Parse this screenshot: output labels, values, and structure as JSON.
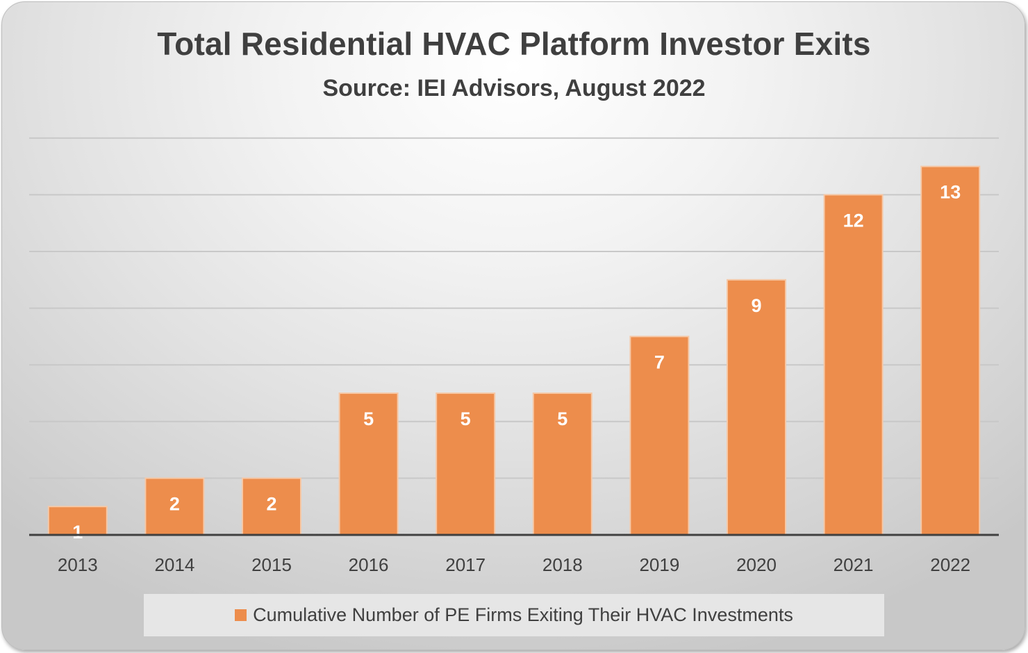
{
  "chart_data": {
    "type": "bar",
    "title": "Total Residential HVAC Platform Investor Exits",
    "subtitle": "Source: IEI Advisors, August 2022",
    "categories": [
      "2013",
      "2014",
      "2015",
      "2016",
      "2017",
      "2018",
      "2019",
      "2020",
      "2021",
      "2022"
    ],
    "series": [
      {
        "name": "Cumulative Number of PE Firms Exiting Their HVAC Investments",
        "values": [
          1,
          2,
          2,
          5,
          5,
          5,
          7,
          9,
          12,
          13
        ],
        "color": "#ed8d4c"
      }
    ],
    "ylim": [
      0,
      14
    ],
    "grid": true,
    "y_tick_labels_shown": false,
    "data_labels": true,
    "legend_position": "bottom"
  },
  "colors": {
    "bar": "#ed8d4c",
    "bar_border": "#f6c8a6",
    "gridline": "#c8c8c8",
    "axis": "#404040",
    "text": "#3f3f3f",
    "data_label": "#ffffff"
  }
}
